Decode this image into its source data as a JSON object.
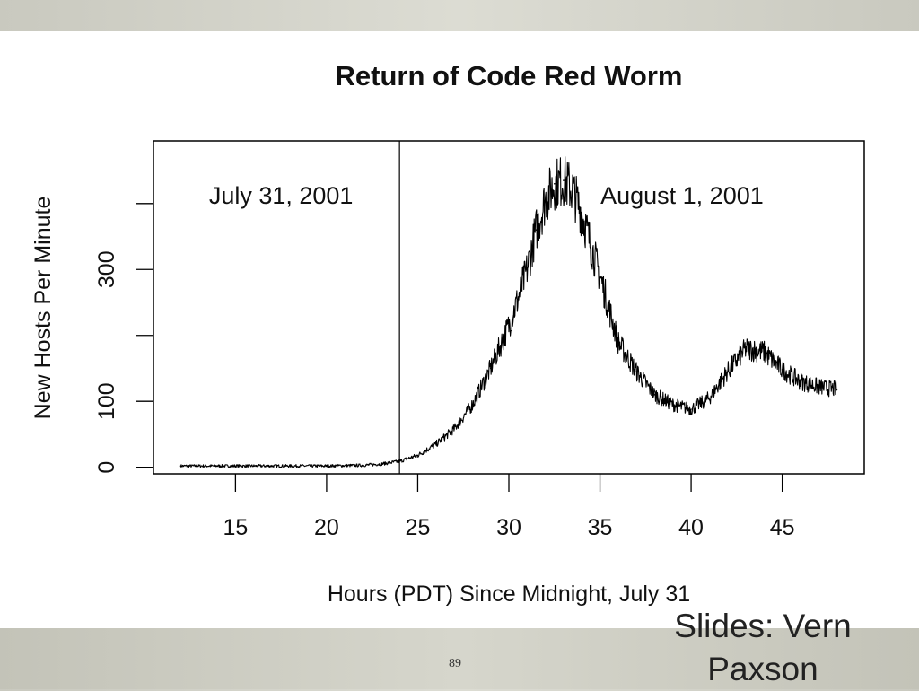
{
  "slide": {
    "page_number": "89",
    "credit": "Slides: Vern Paxson"
  },
  "chart_data": {
    "type": "line",
    "title": "Return of Code Red Worm",
    "xlabel": "Hours (PDT) Since Midnight, July 31",
    "ylabel": "New Hosts Per Minute",
    "xlim": [
      10.5,
      49.5
    ],
    "ylim": [
      -10,
      495
    ],
    "x_ticks": [
      15,
      20,
      25,
      30,
      35,
      40,
      45
    ],
    "y_ticks": [
      0,
      100,
      200,
      300,
      400
    ],
    "y_tick_labels": [
      "0",
      "100",
      "",
      "300",
      ""
    ],
    "divider_x": 24,
    "annotations": [
      {
        "text": "July 31, 2001",
        "x": 17.5,
        "y": 400
      },
      {
        "text": "August 1, 2001",
        "x": 39.5,
        "y": 400
      }
    ],
    "series": [
      {
        "name": "New Hosts Per Minute",
        "x": [
          12,
          14,
          16,
          18,
          20,
          22,
          23,
          24,
          25,
          26,
          27,
          28,
          29,
          30,
          30.5,
          31,
          31.5,
          32,
          32.5,
          33,
          33.5,
          34,
          35,
          36,
          37,
          38,
          39,
          40,
          41,
          42,
          43,
          44,
          45,
          46,
          47,
          48
        ],
        "y": [
          2,
          2,
          2,
          2,
          2,
          3,
          5,
          9,
          18,
          35,
          58,
          95,
          150,
          215,
          255,
          300,
          360,
          405,
          430,
          435,
          420,
          385,
          290,
          190,
          145,
          110,
          95,
          88,
          105,
          145,
          180,
          175,
          148,
          130,
          122,
          118
        ]
      }
    ]
  }
}
